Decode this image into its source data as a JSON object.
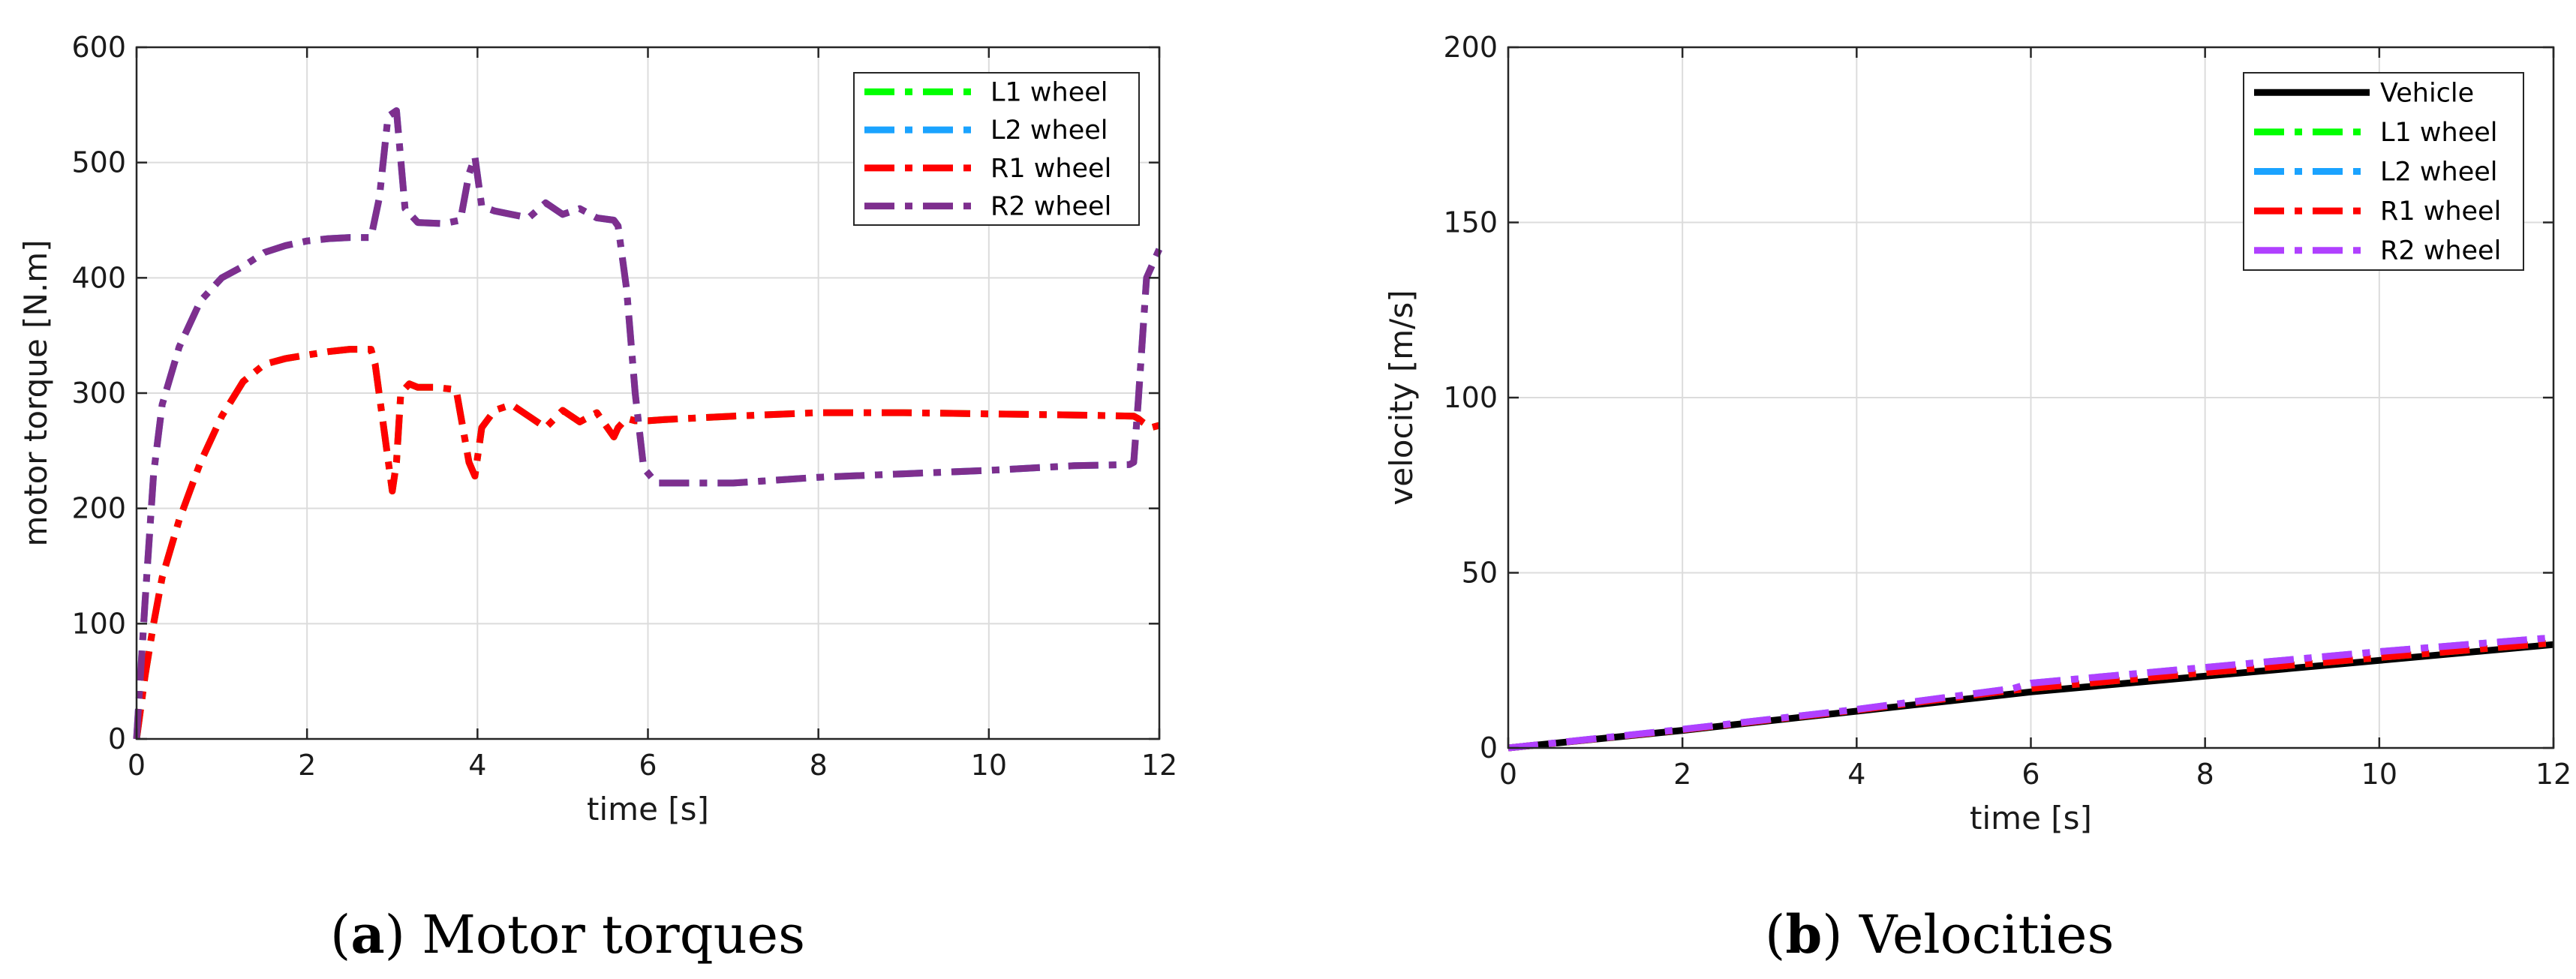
{
  "chart_data": [
    {
      "type": "line",
      "title": "",
      "xlabel": "time [s]",
      "ylabel": "motor torque [N.m]",
      "xlim": [
        0,
        12
      ],
      "ylim": [
        0,
        600
      ],
      "xticks": [
        0,
        2,
        4,
        6,
        8,
        10,
        12
      ],
      "yticks": [
        0,
        100,
        200,
        300,
        400,
        500,
        600
      ],
      "grid": true,
      "legend_position": "top-right",
      "caption_label": "a",
      "caption_text": "Motor torques",
      "series": [
        {
          "name": "L1 wheel",
          "color": "#00ff00",
          "style": "dashdot",
          "x": [
            0,
            0.1,
            0.2,
            0.3,
            0.5,
            0.75,
            1.0,
            1.25,
            1.5,
            1.75,
            2.0,
            2.25,
            2.5,
            2.75,
            2.8,
            2.9,
            3.0,
            3.05,
            3.1,
            3.2,
            3.3,
            3.5,
            3.75,
            3.9,
            3.97,
            4.05,
            4.2,
            4.4,
            4.6,
            4.8,
            5.0,
            5.2,
            5.4,
            5.6,
            5.65,
            5.75,
            5.85,
            6.0,
            6.2,
            7.0,
            8.0,
            9.0,
            10.0,
            11.0,
            11.7,
            11.75,
            11.8,
            11.9,
            12.0
          ],
          "values": [
            0,
            55,
            100,
            140,
            190,
            240,
            280,
            310,
            325,
            330,
            333,
            336,
            338,
            338,
            325,
            270,
            215,
            240,
            300,
            308,
            305,
            305,
            303,
            240,
            228,
            270,
            285,
            290,
            280,
            270,
            285,
            275,
            283,
            262,
            270,
            278,
            276,
            276,
            277,
            280,
            283,
            283,
            282,
            281,
            280,
            278,
            275,
            270,
            272
          ]
        },
        {
          "name": "L2 wheel",
          "color": "#1aa3ff",
          "style": "dashdot",
          "x": [
            0,
            0.1,
            0.2,
            0.3,
            0.5,
            0.75,
            1.0,
            1.25,
            1.5,
            1.75,
            2.0,
            2.25,
            2.5,
            2.75,
            2.85,
            2.95,
            3.05,
            3.15,
            3.3,
            3.6,
            3.8,
            3.9,
            3.97,
            4.05,
            4.2,
            4.4,
            4.6,
            4.8,
            5.0,
            5.2,
            5.4,
            5.6,
            5.65,
            5.75,
            5.85,
            5.95,
            6.1,
            7.0,
            8.0,
            9.0,
            10.0,
            11.0,
            11.65,
            11.7,
            11.75,
            11.85,
            12.0
          ],
          "values": [
            0,
            120,
            230,
            290,
            340,
            380,
            400,
            410,
            422,
            428,
            432,
            434,
            435,
            435,
            470,
            540,
            545,
            460,
            448,
            447,
            450,
            490,
            505,
            462,
            458,
            455,
            452,
            465,
            455,
            460,
            452,
            450,
            445,
            390,
            300,
            235,
            222,
            222,
            227,
            230,
            233,
            237,
            238,
            240,
            290,
            400,
            425
          ]
        },
        {
          "name": "R1 wheel",
          "color": "#ff0000",
          "style": "dashdot",
          "x": [
            0,
            0.1,
            0.2,
            0.3,
            0.5,
            0.75,
            1.0,
            1.25,
            1.5,
            1.75,
            2.0,
            2.25,
            2.5,
            2.75,
            2.8,
            2.9,
            3.0,
            3.05,
            3.1,
            3.2,
            3.3,
            3.5,
            3.75,
            3.9,
            3.97,
            4.05,
            4.2,
            4.4,
            4.6,
            4.8,
            5.0,
            5.2,
            5.4,
            5.6,
            5.65,
            5.75,
            5.85,
            6.0,
            6.2,
            7.0,
            8.0,
            9.0,
            10.0,
            11.0,
            11.7,
            11.75,
            11.8,
            11.9,
            12.0
          ],
          "values": [
            0,
            55,
            100,
            140,
            190,
            240,
            280,
            310,
            325,
            330,
            333,
            336,
            338,
            338,
            325,
            270,
            215,
            240,
            300,
            308,
            305,
            305,
            303,
            240,
            228,
            270,
            285,
            290,
            280,
            270,
            285,
            275,
            283,
            262,
            270,
            278,
            276,
            276,
            277,
            280,
            283,
            283,
            282,
            281,
            280,
            278,
            275,
            270,
            272
          ]
        },
        {
          "name": "R2 wheel",
          "color": "#7e2f8e",
          "style": "dashdot",
          "x": [
            0,
            0.1,
            0.2,
            0.3,
            0.5,
            0.75,
            1.0,
            1.25,
            1.5,
            1.75,
            2.0,
            2.25,
            2.5,
            2.75,
            2.85,
            2.95,
            3.05,
            3.15,
            3.3,
            3.6,
            3.8,
            3.9,
            3.97,
            4.05,
            4.2,
            4.4,
            4.6,
            4.8,
            5.0,
            5.2,
            5.4,
            5.6,
            5.65,
            5.75,
            5.85,
            5.95,
            6.1,
            7.0,
            8.0,
            9.0,
            10.0,
            11.0,
            11.65,
            11.7,
            11.75,
            11.85,
            12.0
          ],
          "values": [
            0,
            120,
            230,
            290,
            340,
            380,
            400,
            410,
            422,
            428,
            432,
            434,
            435,
            435,
            470,
            540,
            545,
            460,
            448,
            447,
            450,
            490,
            505,
            462,
            458,
            455,
            452,
            465,
            455,
            460,
            452,
            450,
            445,
            390,
            300,
            235,
            222,
            222,
            227,
            230,
            233,
            237,
            238,
            240,
            290,
            400,
            425
          ]
        }
      ]
    },
    {
      "type": "line",
      "title": "",
      "xlabel": "time [s]",
      "ylabel": "velocity [m/s]",
      "xlim": [
        0,
        12
      ],
      "ylim": [
        0,
        200
      ],
      "xticks": [
        0,
        2,
        4,
        6,
        8,
        10,
        12
      ],
      "yticks": [
        0,
        50,
        100,
        150,
        200
      ],
      "grid": true,
      "legend_position": "top-right",
      "caption_label": "b",
      "caption_text": "Velocities",
      "series": [
        {
          "name": "Vehicle",
          "color": "#000000",
          "style": "solid",
          "x": [
            0,
            2,
            4,
            6,
            8,
            10,
            12
          ],
          "values": [
            0,
            5,
            10.5,
            16,
            20.5,
            25,
            29.5
          ]
        },
        {
          "name": "L1 wheel",
          "color": "#00ff00",
          "style": "dashdot",
          "x": [
            0,
            2,
            4,
            5.8,
            6,
            8,
            10,
            12
          ],
          "values": [
            0,
            5.2,
            10.8,
            16.5,
            17,
            21.5,
            25.8,
            30
          ]
        },
        {
          "name": "L2 wheel",
          "color": "#1aa3ff",
          "style": "dashdot",
          "x": [
            0,
            2,
            4,
            5.8,
            6,
            8,
            10,
            12
          ],
          "values": [
            0,
            5.3,
            11,
            17,
            18.5,
            23,
            27.5,
            31.5
          ]
        },
        {
          "name": "R1 wheel",
          "color": "#ff0000",
          "style": "dashdot",
          "x": [
            0,
            2,
            4,
            5.8,
            6,
            8,
            10,
            12
          ],
          "values": [
            0,
            5.2,
            10.8,
            16.5,
            17,
            21.5,
            25.8,
            30
          ]
        },
        {
          "name": "R2 wheel",
          "color": "#b040ff",
          "style": "dashdot",
          "x": [
            0,
            2,
            4,
            5.8,
            6,
            8,
            10,
            12
          ],
          "values": [
            0,
            5.3,
            11,
            17,
            18.5,
            23,
            27.5,
            31.5
          ]
        }
      ]
    }
  ]
}
